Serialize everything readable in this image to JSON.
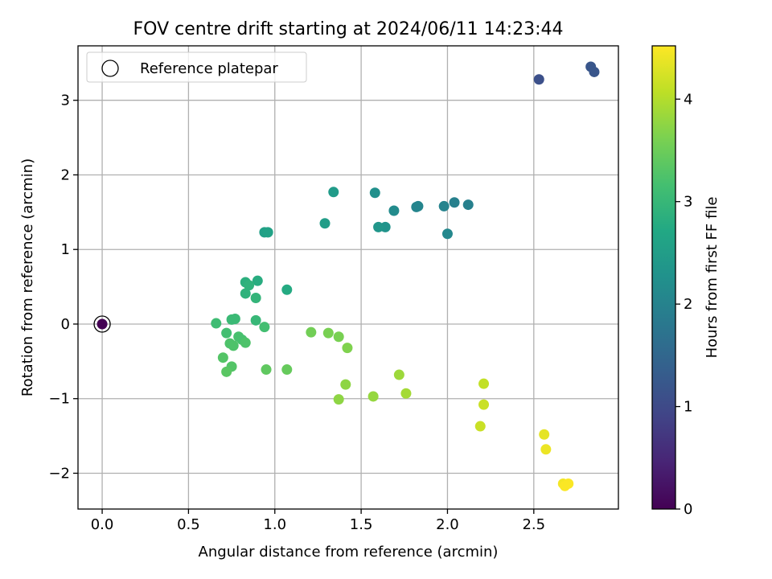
{
  "chart_data": {
    "type": "scatter",
    "title": "FOV centre drift starting at 2024/06/11 14:23:44",
    "xlabel": "Angular distance from reference (arcmin)",
    "ylabel": "Rotation from reference (arcmin)",
    "xlim": [
      -0.14,
      2.99
    ],
    "ylim": [
      -2.48,
      3.73
    ],
    "x_ticks": [
      0.0,
      0.5,
      1.0,
      1.5,
      2.0,
      2.5
    ],
    "x_tick_labels": [
      "0.0",
      "0.5",
      "1.0",
      "1.5",
      "2.0",
      "2.5"
    ],
    "y_ticks": [
      -2,
      -1,
      0,
      1,
      2,
      3
    ],
    "y_tick_labels": [
      "−2",
      "−1",
      "0",
      "1",
      "2",
      "3"
    ],
    "grid": true,
    "legend": {
      "placement": "top-left",
      "entries": [
        "Reference platepar"
      ]
    },
    "colorbar": {
      "label": "Hours from first FF file",
      "range": [
        0,
        4.52
      ],
      "ticks": [
        0,
        1,
        2,
        3,
        4
      ],
      "tick_labels": [
        "0",
        "1",
        "2",
        "3",
        "4"
      ],
      "colormap": "viridis"
    },
    "reference_point": {
      "x": 0.0,
      "y": 0.0,
      "hours": 0.0
    },
    "points": [
      {
        "x": 2.53,
        "y": 3.28,
        "h": 1.1
      },
      {
        "x": 2.83,
        "y": 3.45,
        "h": 1.2
      },
      {
        "x": 2.85,
        "y": 3.38,
        "h": 1.2
      },
      {
        "x": 2.04,
        "y": 1.63,
        "h": 1.95
      },
      {
        "x": 2.12,
        "y": 1.6,
        "h": 1.95
      },
      {
        "x": 1.98,
        "y": 1.58,
        "h": 2.0
      },
      {
        "x": 1.83,
        "y": 1.58,
        "h": 2.05
      },
      {
        "x": 1.82,
        "y": 1.57,
        "h": 2.05
      },
      {
        "x": 2.0,
        "y": 1.21,
        "h": 2.1
      },
      {
        "x": 1.69,
        "y": 1.52,
        "h": 2.15
      },
      {
        "x": 1.58,
        "y": 1.76,
        "h": 2.25
      },
      {
        "x": 1.64,
        "y": 1.3,
        "h": 2.3
      },
      {
        "x": 1.6,
        "y": 1.3,
        "h": 2.35
      },
      {
        "x": 1.34,
        "y": 1.77,
        "h": 2.45
      },
      {
        "x": 1.29,
        "y": 1.35,
        "h": 2.5
      },
      {
        "x": 0.94,
        "y": 1.23,
        "h": 2.55
      },
      {
        "x": 0.96,
        "y": 1.23,
        "h": 2.6
      },
      {
        "x": 1.07,
        "y": 0.46,
        "h": 2.75
      },
      {
        "x": 0.9,
        "y": 0.58,
        "h": 2.8
      },
      {
        "x": 0.83,
        "y": 0.56,
        "h": 2.85
      },
      {
        "x": 0.85,
        "y": 0.52,
        "h": 2.9
      },
      {
        "x": 0.83,
        "y": 0.41,
        "h": 2.9
      },
      {
        "x": 0.89,
        "y": 0.35,
        "h": 2.95
      },
      {
        "x": 0.89,
        "y": 0.05,
        "h": 3.0
      },
      {
        "x": 0.77,
        "y": 0.07,
        "h": 3.05
      },
      {
        "x": 0.75,
        "y": 0.06,
        "h": 3.05
      },
      {
        "x": 0.66,
        "y": 0.01,
        "h": 3.1
      },
      {
        "x": 0.94,
        "y": -0.04,
        "h": 3.15
      },
      {
        "x": 0.72,
        "y": -0.12,
        "h": 3.15
      },
      {
        "x": 0.79,
        "y": -0.17,
        "h": 3.2
      },
      {
        "x": 0.81,
        "y": -0.21,
        "h": 3.2
      },
      {
        "x": 0.83,
        "y": -0.25,
        "h": 3.25
      },
      {
        "x": 0.74,
        "y": -0.26,
        "h": 3.25
      },
      {
        "x": 0.76,
        "y": -0.29,
        "h": 3.25
      },
      {
        "x": 0.7,
        "y": -0.45,
        "h": 3.3
      },
      {
        "x": 0.75,
        "y": -0.57,
        "h": 3.3
      },
      {
        "x": 0.72,
        "y": -0.64,
        "h": 3.35
      },
      {
        "x": 0.95,
        "y": -0.61,
        "h": 3.4
      },
      {
        "x": 1.07,
        "y": -0.61,
        "h": 3.45
      },
      {
        "x": 1.21,
        "y": -0.11,
        "h": 3.55
      },
      {
        "x": 1.31,
        "y": -0.12,
        "h": 3.6
      },
      {
        "x": 1.37,
        "y": -0.17,
        "h": 3.6
      },
      {
        "x": 1.42,
        "y": -0.32,
        "h": 3.65
      },
      {
        "x": 1.41,
        "y": -0.81,
        "h": 3.75
      },
      {
        "x": 1.37,
        "y": -1.01,
        "h": 3.75
      },
      {
        "x": 1.57,
        "y": -0.97,
        "h": 3.8
      },
      {
        "x": 1.72,
        "y": -0.68,
        "h": 3.85
      },
      {
        "x": 1.76,
        "y": -0.93,
        "h": 3.9
      },
      {
        "x": 2.21,
        "y": -0.8,
        "h": 4.1
      },
      {
        "x": 2.21,
        "y": -1.08,
        "h": 4.15
      },
      {
        "x": 2.19,
        "y": -1.37,
        "h": 4.15
      },
      {
        "x": 2.56,
        "y": -1.48,
        "h": 4.35
      },
      {
        "x": 2.57,
        "y": -1.68,
        "h": 4.4
      },
      {
        "x": 2.67,
        "y": -2.14,
        "h": 4.45
      },
      {
        "x": 2.68,
        "y": -2.17,
        "h": 4.5
      },
      {
        "x": 2.7,
        "y": -2.14,
        "h": 4.5
      }
    ]
  }
}
